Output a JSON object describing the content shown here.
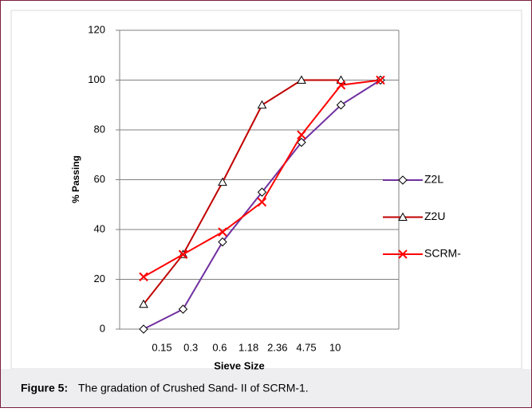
{
  "chart_data": {
    "type": "line",
    "caption_label": "Figure 5:",
    "caption_text": "The gradation of Crushed Sand- II of SCRM-1.",
    "xlabel": "Sieve Size",
    "ylabel": "% Passing",
    "categories": [
      "0.15",
      "0.3",
      "0.6",
      "1.18",
      "2.36",
      "4.75",
      "10"
    ],
    "series": [
      {
        "name": "Z2L",
        "color": "#7030a0",
        "marker": "diamond",
        "values": [
          0,
          8,
          35,
          55,
          75,
          90,
          100
        ]
      },
      {
        "name": "Z2U",
        "color": "#c00000",
        "marker": "triangle",
        "values": [
          10,
          30,
          59,
          90,
          100,
          100,
          null
        ]
      },
      {
        "name": "SCRM-",
        "color": "#ff0000",
        "marker": "x",
        "values": [
          21,
          30,
          39,
          51,
          78,
          98,
          100
        ]
      }
    ],
    "ylim": [
      0,
      120
    ],
    "yticks": [
      0,
      20,
      40,
      60,
      80,
      100,
      120
    ],
    "grid": true,
    "legend": "right"
  }
}
